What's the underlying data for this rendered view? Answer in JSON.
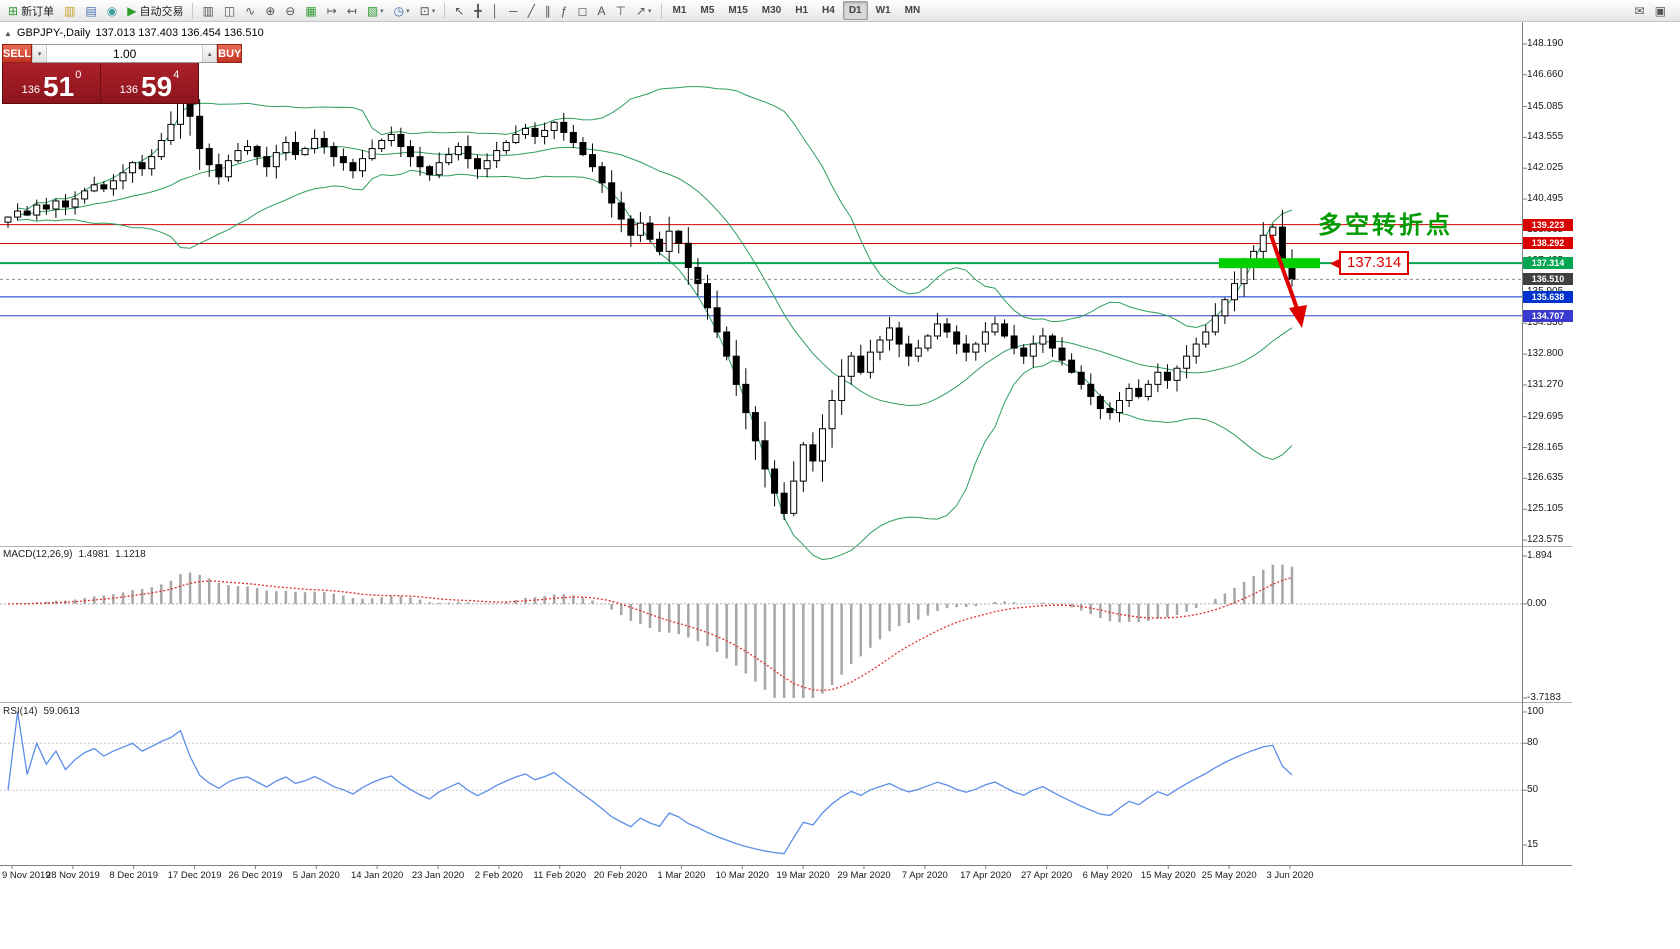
{
  "toolbar": {
    "file_group": [
      {
        "name": "new-order-button",
        "icon": "new-order-icon",
        "glyph": "⊞",
        "glyph_color": "#2e9b2e",
        "label": "新订单"
      },
      {
        "name": "charts-button",
        "icon": "charts-icon",
        "glyph": "▥",
        "glyph_color": "#c9a227"
      },
      {
        "name": "profiles-button",
        "icon": "profiles-icon",
        "glyph": "▤",
        "glyph_color": "#4a6fb5"
      },
      {
        "name": "web-button",
        "icon": "globe-icon",
        "glyph": "◉",
        "glyph_color": "#3a9f9f"
      },
      {
        "name": "autotrading-button",
        "icon": "autotrade-play-icon",
        "glyph": "▶",
        "glyph_color": "#2e9b2e",
        "label": "自动交易"
      }
    ],
    "chart_group": [
      {
        "name": "bar-chart-button",
        "icon": "bar-chart-icon",
        "glyph": "▥"
      },
      {
        "name": "candlestick-button",
        "icon": "candlestick-icon",
        "glyph": "◫"
      },
      {
        "name": "line-chart-button",
        "icon": "line-chart-icon",
        "glyph": "∿"
      },
      {
        "name": "zoom-in-button",
        "icon": "zoom-in-icon",
        "glyph": "⊕"
      },
      {
        "name": "zoom-out-button",
        "icon": "zoom-out-icon",
        "glyph": "⊖"
      },
      {
        "name": "tile-windows-button",
        "icon": "tile-windows-icon",
        "glyph": "▦",
        "glyph_color": "#2e9b2e"
      },
      {
        "name": "auto-scroll-button",
        "icon": "auto-scroll-icon",
        "glyph": "↦"
      },
      {
        "name": "chart-shift-button",
        "icon": "chart-shift-icon",
        "glyph": "↤"
      },
      {
        "name": "new-chart-button",
        "icon": "new-chart-icon",
        "glyph": "▧",
        "glyph_color": "#2e9b2e",
        "dropdown": true
      },
      {
        "name": "periods-button",
        "icon": "clock-icon",
        "glyph": "◷",
        "glyph_color": "#3a6fb0",
        "dropdown": true
      },
      {
        "name": "templates-button",
        "icon": "template-icon",
        "glyph": "⊡",
        "dropdown": true
      }
    ],
    "tools_group": [
      {
        "name": "cursor-button",
        "icon": "cursor-icon",
        "glyph": "↖"
      },
      {
        "name": "crosshair-button",
        "icon": "crosshair-icon",
        "glyph": "╋"
      },
      {
        "name": "vertical-line-button",
        "icon": "vertical-line-icon",
        "glyph": "│"
      },
      {
        "name": "horizontal-line-button",
        "icon": "horizontal-line-icon",
        "glyph": "─"
      },
      {
        "name": "trendline-button",
        "icon": "trendline-icon",
        "glyph": "╱"
      },
      {
        "name": "channel-button",
        "icon": "channel-icon",
        "glyph": "∥"
      },
      {
        "name": "fibonacci-button",
        "icon": "fibonacci-icon",
        "glyph": "ƒ"
      },
      {
        "name": "shapes-button",
        "icon": "shapes-icon",
        "glyph": "◻"
      },
      {
        "name": "text-button",
        "icon": "text-icon",
        "glyph": "A"
      },
      {
        "name": "label-button",
        "icon": "label-icon",
        "glyph": "⊤"
      },
      {
        "name": "arrows-button",
        "icon": "arrows-icon",
        "glyph": "↗",
        "dropdown": true
      }
    ],
    "timeframes": [
      {
        "label": "M1"
      },
      {
        "label": "M5"
      },
      {
        "label": "M15"
      },
      {
        "label": "M30"
      },
      {
        "label": "H1"
      },
      {
        "label": "H4"
      },
      {
        "label": "D1",
        "active": true
      },
      {
        "label": "W1"
      },
      {
        "label": "MN"
      }
    ],
    "right_group": [
      {
        "name": "chat-button",
        "icon": "chat-icon",
        "glyph": "✉"
      },
      {
        "name": "layout-button",
        "icon": "layout-icon",
        "glyph": "▣"
      }
    ]
  },
  "symbol_header": {
    "collapse_icon": "▲",
    "title": "GBPJPY-,Daily",
    "ohlc": "137.013 137.403 136.454 136.510"
  },
  "trade_panel": {
    "sell_label": "SELL",
    "buy_label": "BUY",
    "volume": "1.00",
    "bid": {
      "big_figure": "136",
      "points": "51",
      "pip": "0"
    },
    "ask": {
      "big_figure": "136",
      "points": "59",
      "pip": "4"
    }
  },
  "annotations": {
    "turning_point": "多空转折点",
    "turning_point_color": "#009b00",
    "callout_price": "137.314",
    "callout_color": "#e00000",
    "trend_arrow_color": "#e00000"
  },
  "price_scale": {
    "labels": [
      "148.190",
      "146.660",
      "145.085",
      "143.555",
      "142.025",
      "140.495",
      "138.965",
      "137.435",
      "135.905",
      "134.330",
      "132.800",
      "131.270",
      "129.695",
      "128.165",
      "126.635",
      "125.105",
      "123.575"
    ],
    "tags": [
      {
        "value": "139.223",
        "color": "#d80000"
      },
      {
        "value": "138.292",
        "color": "#d80000"
      },
      {
        "value": "137.314",
        "color": "#00a651"
      },
      {
        "value": "136.510",
        "color": "#404040"
      },
      {
        "value": "135.638",
        "color": "#0033cc"
      },
      {
        "value": "134.707",
        "color": "#3a3ad0"
      }
    ]
  },
  "time_axis": {
    "labels": [
      "9 Nov 2019",
      "28 Nov 2019",
      "8 Dec 2019",
      "17 Dec 2019",
      "26 Dec 2019",
      "5 Jan 2020",
      "14 Jan 2020",
      "23 Jan 2020",
      "2 Feb 2020",
      "11 Feb 2020",
      "20 Feb 2020",
      "1 Mar 2020",
      "10 Mar 2020",
      "19 Mar 2020",
      "29 Mar 2020",
      "7 Apr 2020",
      "17 Apr 2020",
      "27 Apr 2020",
      "6 May 2020",
      "15 May 2020",
      "25 May 2020",
      "3 Jun 2020"
    ]
  },
  "macd_panel": {
    "title": "MACD(12,26,9)",
    "main_value": "1.4981",
    "signal_value": "1.1218",
    "scale": [
      {
        "label": "1.894",
        "value": 1.894
      },
      {
        "label": "0.00",
        "value": 0
      },
      {
        "label": "-3.7183",
        "value": -3.7183
      }
    ],
    "histogram_color": "#a6a6a6",
    "signal_color": "#e03232"
  },
  "rsi_panel": {
    "title": "RSI(14)",
    "value": "59.0613",
    "scale": [
      {
        "label": "100",
        "value": 100
      },
      {
        "label": "80",
        "value": 80
      },
      {
        "label": "50",
        "value": 50
      },
      {
        "label": "15",
        "value": 15
      }
    ],
    "levels": [
      80,
      50
    ],
    "line_color": "#5b8fe8"
  },
  "chart_data": {
    "type": "candlestick",
    "symbol": "GBPJPY",
    "period": "Daily",
    "price_axis_range": [
      123.33,
      149.18
    ],
    "closes": [
      139.6,
      139.9,
      139.7,
      140.2,
      140.0,
      140.4,
      140.1,
      140.5,
      140.9,
      141.2,
      141.0,
      141.4,
      141.8,
      142.3,
      142.0,
      142.6,
      143.4,
      144.2,
      146.2,
      144.6,
      143.0,
      142.2,
      141.6,
      142.4,
      142.9,
      143.1,
      142.6,
      142.1,
      142.8,
      143.3,
      142.7,
      143.0,
      143.5,
      143.1,
      142.6,
      142.3,
      141.9,
      142.5,
      143.0,
      143.4,
      143.7,
      143.1,
      142.6,
      142.1,
      141.7,
      142.3,
      142.7,
      143.1,
      142.5,
      142.0,
      142.4,
      142.9,
      143.3,
      143.7,
      144.0,
      143.6,
      143.9,
      144.3,
      143.8,
      143.3,
      142.7,
      142.1,
      141.3,
      140.3,
      139.5,
      138.7,
      139.3,
      138.5,
      137.9,
      138.9,
      138.3,
      137.1,
      136.3,
      135.1,
      133.9,
      132.7,
      131.3,
      129.9,
      128.5,
      127.1,
      125.9,
      124.9,
      126.5,
      128.3,
      127.5,
      129.1,
      130.5,
      131.7,
      132.7,
      131.9,
      132.9,
      133.5,
      134.1,
      133.3,
      132.7,
      133.1,
      133.7,
      134.3,
      133.9,
      133.3,
      132.9,
      133.3,
      133.9,
      134.3,
      133.7,
      133.1,
      132.7,
      133.3,
      133.7,
      133.1,
      132.5,
      131.9,
      131.3,
      130.7,
      130.1,
      129.9,
      130.5,
      131.1,
      130.7,
      131.3,
      131.9,
      131.5,
      132.1,
      132.7,
      133.3,
      133.9,
      134.7,
      135.5,
      136.3,
      137.1,
      137.9,
      138.7,
      139.1,
      137.4,
      136.51
    ],
    "bollinger": {
      "period": 20,
      "deviations": 2,
      "color": "#2e9e5e"
    },
    "hlines": [
      {
        "price": 139.223,
        "color": "#d80000"
      },
      {
        "price": 138.292,
        "color": "#d80000"
      },
      {
        "price": 137.314,
        "color": "#00a651",
        "width": 2
      },
      {
        "price": 136.51,
        "color": "#909090",
        "dash": true
      },
      {
        "price": 135.638,
        "color": "#0033cc"
      },
      {
        "price": 134.707,
        "color": "#3a3ad0"
      }
    ],
    "highlight_bar": {
      "price": 137.314,
      "color": "#00d000"
    },
    "candle_up_fill": "#ffffff",
    "candle_down_fill": "#000000",
    "candle_outline": "#000000"
  }
}
